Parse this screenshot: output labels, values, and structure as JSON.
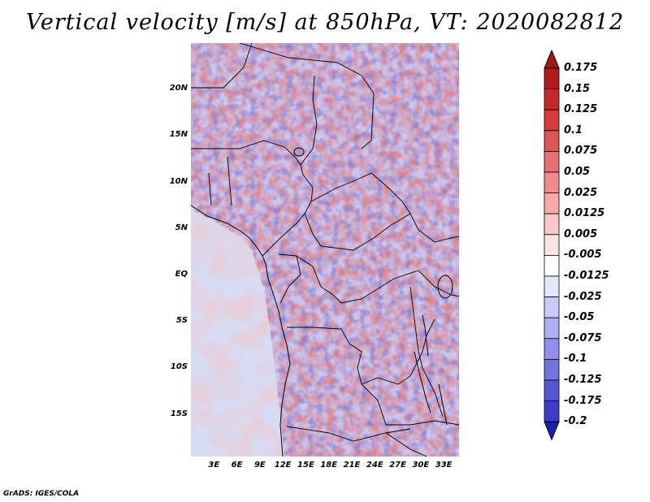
{
  "title": "Vertical velocity [m/s] at 850hPa, VT: 2020082812",
  "credit": "GrADS: IGES/COLA",
  "map": {
    "lon_range": [
      0,
      35
    ],
    "lat_range": [
      -19.5,
      25
    ],
    "lat_labels": [
      {
        "lat": 20,
        "text": "20N"
      },
      {
        "lat": 15,
        "text": "15N"
      },
      {
        "lat": 10,
        "text": "10N"
      },
      {
        "lat": 5,
        "text": "5N"
      },
      {
        "lat": 0,
        "text": "EQ"
      },
      {
        "lat": -5,
        "text": "5S"
      },
      {
        "lat": -10,
        "text": "10S"
      },
      {
        "lat": -15,
        "text": "15S"
      }
    ],
    "lon_labels": [
      {
        "lon": 3,
        "text": "3E"
      },
      {
        "lon": 6,
        "text": "6E"
      },
      {
        "lon": 9,
        "text": "9E"
      },
      {
        "lon": 12,
        "text": "12E"
      },
      {
        "lon": 15,
        "text": "15E"
      },
      {
        "lon": 18,
        "text": "18E"
      },
      {
        "lon": 21,
        "text": "21E"
      },
      {
        "lon": 24,
        "text": "24E"
      },
      {
        "lon": 27,
        "text": "27E"
      },
      {
        "lon": 30,
        "text": "30E"
      },
      {
        "lon": 33,
        "text": "33E"
      }
    ]
  },
  "colorbar": {
    "levels": [
      {
        "label": "0.175",
        "color": "#b01c1c"
      },
      {
        "label": "0.15",
        "color": "#c42a2a"
      },
      {
        "label": "0.125",
        "color": "#d43c3c"
      },
      {
        "label": "0.1",
        "color": "#e05454"
      },
      {
        "label": "0.075",
        "color": "#e87070"
      },
      {
        "label": "0.05",
        "color": "#f08c8c"
      },
      {
        "label": "0.025",
        "color": "#f6aaaa"
      },
      {
        "label": "0.0125",
        "color": "#f9c8c8"
      },
      {
        "label": "0.005",
        "color": "#fce4e4"
      },
      {
        "label": "-0.005",
        "color": "#ffffff"
      },
      {
        "label": "-0.0125",
        "color": "#e6e6fc"
      },
      {
        "label": "-0.025",
        "color": "#cacaf8"
      },
      {
        "label": "-0.05",
        "color": "#aeaef2"
      },
      {
        "label": "-0.075",
        "color": "#9090ea"
      },
      {
        "label": "-0.1",
        "color": "#7272e0"
      },
      {
        "label": "-0.125",
        "color": "#5656d4"
      },
      {
        "label": "-0.175",
        "color": "#3c3cc6"
      },
      {
        "label": "-0.2",
        "color": "#2828b4"
      }
    ],
    "top_color": "#a01818",
    "bottom_color": "#1e1ea8"
  }
}
